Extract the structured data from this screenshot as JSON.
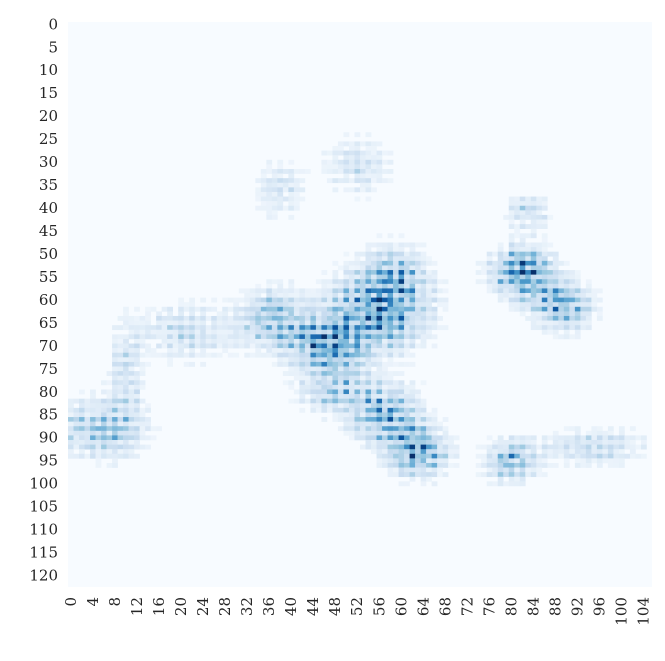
{
  "chart_data": {
    "type": "heatmap",
    "title": "",
    "xlabel": "",
    "ylabel": "",
    "n_cols": 106,
    "n_rows": 123,
    "x_tick_labels": [
      "0",
      "4",
      "8",
      "12",
      "16",
      "20",
      "24",
      "28",
      "32",
      "36",
      "40",
      "44",
      "48",
      "52",
      "56",
      "60",
      "64",
      "68",
      "72",
      "76",
      "80",
      "84",
      "88",
      "92",
      "96",
      "100",
      "104"
    ],
    "y_tick_labels": [
      "0",
      "5",
      "10",
      "15",
      "20",
      "25",
      "30",
      "35",
      "40",
      "45",
      "50",
      "55",
      "60",
      "65",
      "70",
      "75",
      "80",
      "85",
      "90",
      "95",
      "100",
      "105",
      "110",
      "115",
      "120"
    ],
    "colormap": [
      "#f7fbff",
      "#deebf7",
      "#c6dbef",
      "#9ecae1",
      "#6baed6",
      "#4292c6",
      "#2171b5",
      "#08519c",
      "#08306b"
    ],
    "value_range": [
      0,
      1
    ],
    "colorbar": false,
    "grid": false,
    "blobs": [
      {
        "col": 82,
        "row": 54,
        "spread_x": 3.5,
        "spread_y": 3.5,
        "intensity": 0.95
      },
      {
        "col": 89,
        "row": 61,
        "spread_x": 3.5,
        "spread_y": 3.5,
        "intensity": 0.7
      },
      {
        "col": 83,
        "row": 41,
        "spread_x": 2.5,
        "spread_y": 2.5,
        "intensity": 0.35
      },
      {
        "col": 56,
        "row": 62,
        "spread_x": 5.5,
        "spread_y": 5.5,
        "intensity": 0.85
      },
      {
        "col": 47,
        "row": 70,
        "spread_x": 4.5,
        "spread_y": 4.0,
        "intensity": 0.9
      },
      {
        "col": 37,
        "row": 64,
        "spread_x": 4.0,
        "spread_y": 4.0,
        "intensity": 0.6
      },
      {
        "col": 57,
        "row": 85,
        "spread_x": 4.0,
        "spread_y": 4.0,
        "intensity": 0.75
      },
      {
        "col": 63,
        "row": 93,
        "spread_x": 3.5,
        "spread_y": 3.5,
        "intensity": 0.8
      },
      {
        "col": 80,
        "row": 95,
        "spread_x": 3.0,
        "spread_y": 3.0,
        "intensity": 0.6
      },
      {
        "col": 95,
        "row": 92,
        "spread_x": 6.0,
        "spread_y": 2.5,
        "intensity": 0.35
      },
      {
        "col": 5,
        "row": 88,
        "spread_x": 5.0,
        "spread_y": 4.0,
        "intensity": 0.5
      },
      {
        "col": 10,
        "row": 78,
        "spread_x": 2.0,
        "spread_y": 8.0,
        "intensity": 0.3
      },
      {
        "col": 21,
        "row": 67,
        "spread_x": 6.0,
        "spread_y": 4.0,
        "intensity": 0.3
      },
      {
        "col": 52,
        "row": 31,
        "spread_x": 4.0,
        "spread_y": 4.0,
        "intensity": 0.25
      },
      {
        "col": 38,
        "row": 36,
        "spread_x": 3.0,
        "spread_y": 4.0,
        "intensity": 0.25
      },
      {
        "col": 59,
        "row": 55,
        "spread_x": 3.5,
        "spread_y": 4.0,
        "intensity": 0.5
      },
      {
        "col": 48,
        "row": 80,
        "spread_x": 4.0,
        "spread_y": 3.0,
        "intensity": 0.45
      }
    ]
  }
}
